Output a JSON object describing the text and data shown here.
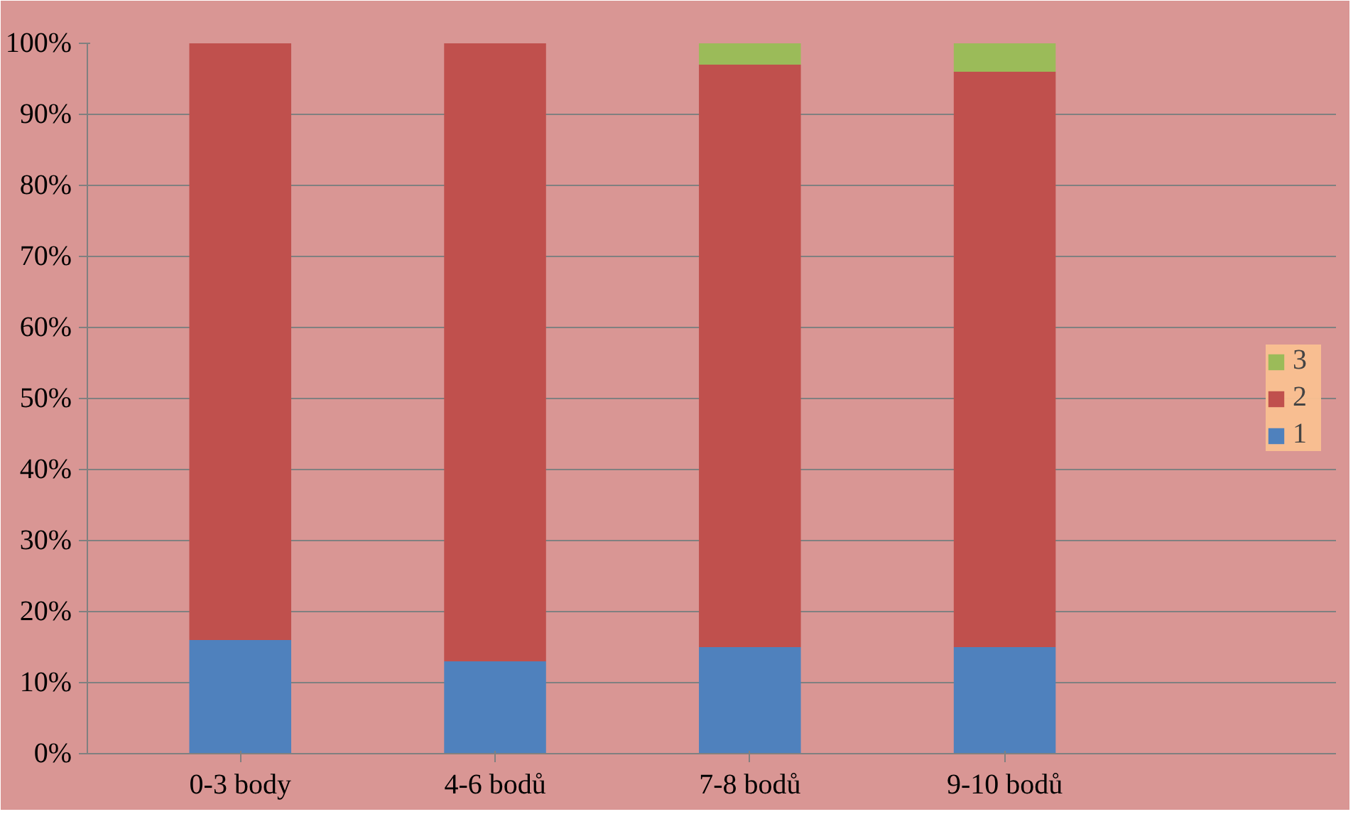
{
  "chart_data": {
    "type": "bar",
    "stacked": true,
    "categories": [
      "0-3 body",
      "4-6 bodů",
      "7-8 bodů",
      "9-10 bodů"
    ],
    "series": [
      {
        "name": "1",
        "color": "#4f81bd",
        "values": [
          16,
          13,
          15,
          15
        ]
      },
      {
        "name": "2",
        "color": "#c0504d",
        "values": [
          84,
          87,
          82,
          81
        ]
      },
      {
        "name": "3",
        "color": "#9bbb59",
        "values": [
          0,
          0,
          3,
          4
        ]
      }
    ],
    "ylim": [
      0,
      100
    ],
    "yticks": [
      {
        "value": 0,
        "label": "0%"
      },
      {
        "value": 10,
        "label": "10%"
      },
      {
        "value": 20,
        "label": "20%"
      },
      {
        "value": 30,
        "label": "30%"
      },
      {
        "value": 40,
        "label": "40%"
      },
      {
        "value": 50,
        "label": "50%"
      },
      {
        "value": 60,
        "label": "60%"
      },
      {
        "value": 70,
        "label": "70%"
      },
      {
        "value": 80,
        "label": "80%"
      },
      {
        "value": 90,
        "label": "90%"
      },
      {
        "value": 100,
        "label": "100%"
      }
    ],
    "grid": "y",
    "legend": "right"
  }
}
